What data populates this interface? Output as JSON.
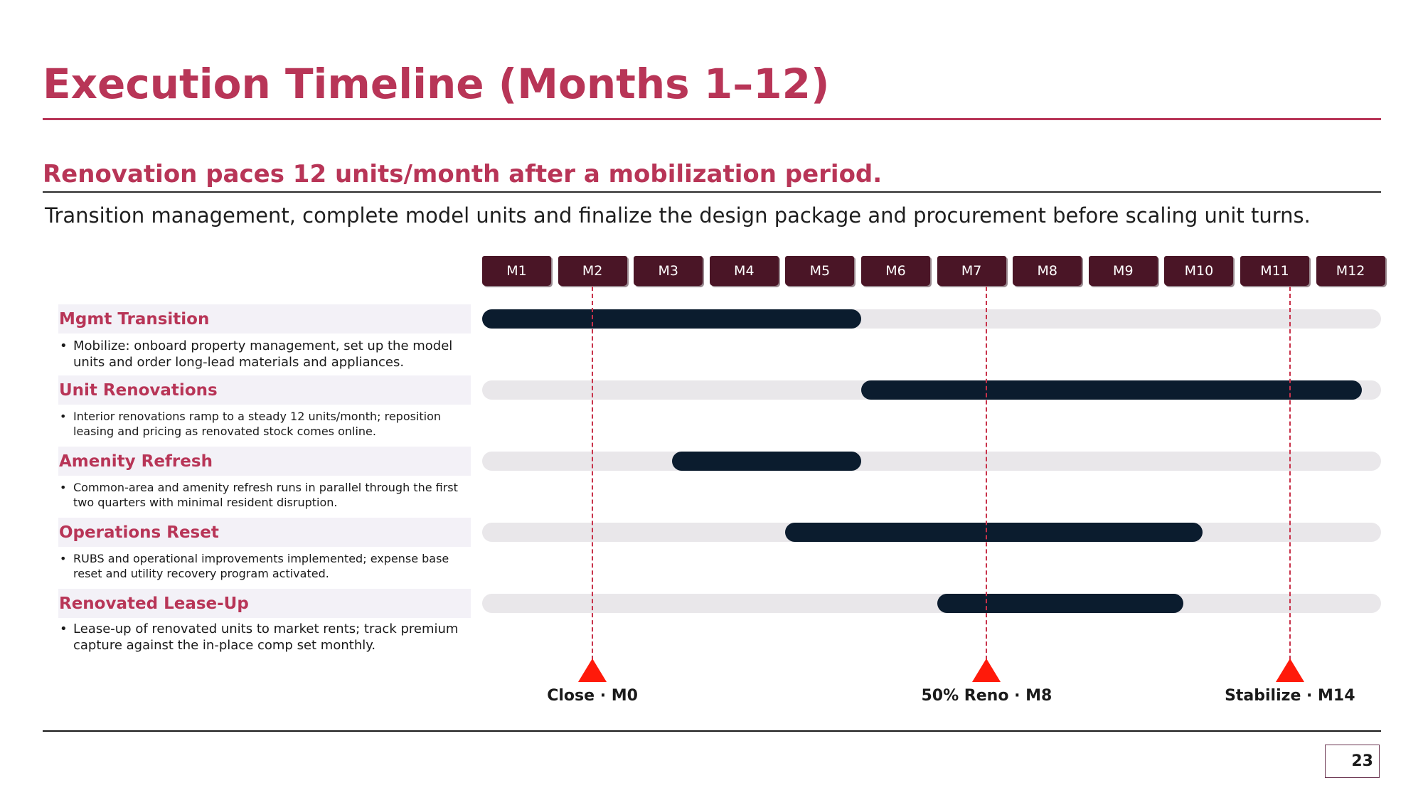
{
  "title": "Execution Timeline (Months 1–12)",
  "subtitle": "Renovation paces 12 units/month after a mobilization period.",
  "intro": "Transition management, complete model units and finalize the design package and procurement before scaling unit turns.",
  "colors": {
    "accent": "#b83557",
    "month_header": "#4a1526",
    "bar": "#0b1c2e",
    "track": "#e9e7ea",
    "milestone": "#ff1a0a"
  },
  "page_number": "23",
  "chart_data": {
    "type": "gantt",
    "months": [
      "M1",
      "M2",
      "M3",
      "M4",
      "M5",
      "M6",
      "M7",
      "M8",
      "M9",
      "M10",
      "M11",
      "M12"
    ],
    "tasks": [
      {
        "name": "Mgmt Transition",
        "description": "Mobilize: onboard property management, set up the model units and order long-lead materials and appliances.",
        "start": 1,
        "end": 6
      },
      {
        "name": "Unit Renovations",
        "description": "Interior renovations ramp to a steady 12 units/month; reposition leasing and pricing as renovated stock comes online.",
        "start": 6,
        "end": 12.6
      },
      {
        "name": "Amenity Refresh",
        "description": "Common-area and amenity refresh runs in parallel through the first two quarters with minimal resident disruption.",
        "start": 3.5,
        "end": 6
      },
      {
        "name": "Operations Reset",
        "description": "RUBS and operational improvements implemented; expense base reset and utility recovery program activated.",
        "start": 5,
        "end": 10.5
      },
      {
        "name": "Renovated Lease-Up",
        "description": "Lease-up of renovated units to market rents; track premium capture against the in-place comp set monthly.",
        "start": 7,
        "end": 10.25
      }
    ],
    "milestones": [
      {
        "label": "Close · M0",
        "month": 2
      },
      {
        "label": "50% Reno · M8",
        "month": 7.2
      },
      {
        "label": "Stabilize · M14",
        "month": 11.2
      }
    ]
  }
}
